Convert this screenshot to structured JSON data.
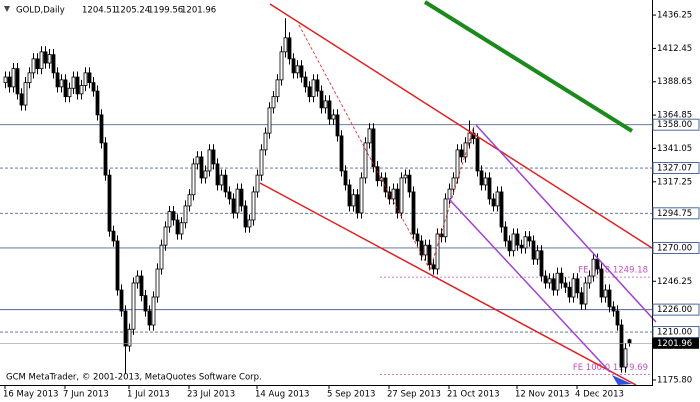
{
  "chart_data": {
    "type": "candlestick",
    "symbol": "GOLD,Daily",
    "copyright": "GCM MetaTrader, © 2001-2013, MetaQuotes Software Corp.",
    "ylim": [
      1172.2,
      1447
    ],
    "yticks": [
      1436.25,
      1412.45,
      1388.65,
      1364.85,
      1341.05,
      1317.25,
      1246.25,
      {
        "value": 1175.8,
        "label": "1175.80"
      }
    ],
    "up_color": "#ffffff",
    "down_color": "#000000",
    "level_color": "#4f6796",
    "levels": [
      {
        "value": 1358,
        "label": "1358.00",
        "dashed": false
      },
      {
        "value": 1327.07,
        "label": "1327.07",
        "dashed": true
      },
      {
        "value": 1294.75,
        "label": "1294.75",
        "dashed": true
      },
      {
        "value": 1270,
        "label": "1270.00",
        "dashed": false
      },
      {
        "value": 1226,
        "label": "1226.00",
        "dashed": false
      },
      {
        "value": 1210,
        "label": "1210.00",
        "dashed": true
      }
    ],
    "current_price": 1201.96,
    "fibo_color": "#c050c0",
    "fibo": [
      {
        "value": 1249.18,
        "label": "FE 61.8 1249.18"
      },
      {
        "value": 1179.69,
        "label": "FE 100.0 1179.69"
      }
    ],
    "categories": [
      "16 May 2013",
      null,
      null,
      null,
      null,
      null,
      null,
      null,
      null,
      null,
      null,
      null,
      null,
      null,
      null,
      "7 Jun 2013",
      null,
      null,
      null,
      null,
      null,
      null,
      null,
      null,
      null,
      null,
      null,
      null,
      null,
      null,
      null,
      "1 Jul 2013",
      null,
      null,
      null,
      null,
      null,
      null,
      null,
      null,
      null,
      null,
      null,
      null,
      null,
      null,
      "23 Jul 2013",
      null,
      null,
      null,
      null,
      null,
      null,
      null,
      null,
      null,
      null,
      null,
      null,
      null,
      null,
      null,
      null,
      "14 Aug 2013",
      null,
      null,
      null,
      null,
      null,
      null,
      null,
      null,
      null,
      null,
      null,
      null,
      null,
      null,
      null,
      null,
      null,
      "5 Sep 2013",
      null,
      null,
      null,
      null,
      null,
      null,
      null,
      null,
      null,
      null,
      null,
      null,
      null,
      null,
      "27 Sep 2013",
      null,
      null,
      null,
      null,
      null,
      null,
      null,
      null,
      null,
      null,
      null,
      null,
      null,
      null,
      "21 Oct 2013",
      null,
      null,
      null,
      null,
      null,
      null,
      null,
      null,
      null,
      null,
      null,
      null,
      null,
      null,
      null,
      null,
      "12 Nov 2013",
      null,
      null,
      null,
      null,
      null,
      null,
      null,
      null,
      null,
      null,
      null,
      null,
      null,
      null,
      "4 Dec 2013",
      null,
      null,
      null,
      null,
      null,
      null,
      null,
      null,
      null,
      null,
      null,
      null,
      null
    ],
    "open": [
      1388,
      1392,
      1385,
      1398,
      1380,
      1372,
      1388,
      1395,
      1405,
      1398,
      1410,
      1402,
      1408,
      1395,
      1385,
      1390,
      1378,
      1384,
      1392,
      1380,
      1386,
      1395,
      1388,
      1382,
      1365,
      1345,
      1322,
      1282,
      1275,
      1240,
      1225,
      1200,
      1212,
      1245,
      1250,
      1236,
      1225,
      1215,
      1235,
      1255,
      1272,
      1285,
      1296,
      1290,
      1280,
      1288,
      1300,
      1308,
      1330,
      1335,
      1320,
      1325,
      1340,
      1330,
      1315,
      1322,
      1310,
      1305,
      1295,
      1312,
      1300,
      1285,
      1290,
      1310,
      1322,
      1340,
      1352,
      1370,
      1378,
      1390,
      1410,
      1420,
      1405,
      1395,
      1400,
      1392,
      1385,
      1378,
      1390,
      1382,
      1370,
      1375,
      1362,
      1365,
      1350,
      1325,
      1315,
      1300,
      1308,
      1295,
      1320,
      1345,
      1355,
      1328,
      1318,
      1320,
      1310,
      1305,
      1312,
      1295,
      1320,
      1322,
      1310,
      1280,
      1275,
      1265,
      1272,
      1258,
      1255,
      1280,
      1278,
      1305,
      1312,
      1320,
      1340,
      1335,
      1345,
      1352,
      1348,
      1325,
      1315,
      1320,
      1305,
      1300,
      1310,
      1285,
      1275,
      1268,
      1280,
      1272,
      1270,
      1278,
      1275,
      1262,
      1268,
      1250,
      1245,
      1248,
      1240,
      1252,
      1245,
      1242,
      1235,
      1248,
      1238,
      1230,
      1245,
      1250,
      1262,
      1255,
      1235,
      1240,
      1228,
      1225,
      1215,
      1185,
      1204.51
    ],
    "high": [
      1396,
      1396,
      1402,
      1402,
      1384,
      1392,
      1399,
      1409,
      1409,
      1414,
      1414,
      1412,
      1412,
      1399,
      1394,
      1394,
      1388,
      1396,
      1396,
      1390,
      1399,
      1399,
      1392,
      1386,
      1369,
      1349,
      1326,
      1286,
      1279,
      1244,
      1229,
      1216,
      1249,
      1254,
      1254,
      1240,
      1229,
      1239,
      1259,
      1276,
      1289,
      1300,
      1300,
      1294,
      1292,
      1304,
      1312,
      1334,
      1339,
      1339,
      1329,
      1344,
      1344,
      1334,
      1326,
      1326,
      1314,
      1309,
      1316,
      1316,
      1304,
      1294,
      1314,
      1326,
      1344,
      1356,
      1374,
      1382,
      1394,
      1414,
      1434,
      1424,
      1409,
      1404,
      1404,
      1396,
      1389,
      1394,
      1394,
      1386,
      1379,
      1379,
      1369,
      1369,
      1354,
      1329,
      1319,
      1312,
      1312,
      1324,
      1349,
      1359,
      1359,
      1332,
      1324,
      1324,
      1314,
      1316,
      1316,
      1324,
      1326,
      1326,
      1314,
      1284,
      1279,
      1276,
      1276,
      1262,
      1284,
      1284,
      1309,
      1316,
      1324,
      1344,
      1344,
      1349,
      1361,
      1356,
      1352,
      1329,
      1324,
      1324,
      1309,
      1314,
      1314,
      1289,
      1279,
      1284,
      1284,
      1276,
      1282,
      1282,
      1279,
      1272,
      1272,
      1254,
      1252,
      1252,
      1256,
      1256,
      1249,
      1246,
      1252,
      1252,
      1242,
      1249,
      1254,
      1266,
      1266,
      1259,
      1244,
      1244,
      1232,
      1229,
      1219,
      1202,
      1205.24
    ],
    "low": [
      1384,
      1381,
      1381,
      1376,
      1368,
      1368,
      1384,
      1391,
      1394,
      1394,
      1398,
      1398,
      1391,
      1381,
      1381,
      1374,
      1374,
      1380,
      1376,
      1376,
      1382,
      1384,
      1378,
      1361,
      1341,
      1318,
      1278,
      1271,
      1236,
      1221,
      1180,
      1196,
      1208,
      1241,
      1232,
      1221,
      1211,
      1211,
      1231,
      1251,
      1268,
      1281,
      1286,
      1276,
      1276,
      1284,
      1296,
      1304,
      1326,
      1316,
      1316,
      1321,
      1326,
      1311,
      1311,
      1306,
      1301,
      1291,
      1291,
      1296,
      1281,
      1281,
      1286,
      1306,
      1318,
      1336,
      1348,
      1366,
      1374,
      1386,
      1406,
      1401,
      1391,
      1391,
      1388,
      1381,
      1374,
      1374,
      1378,
      1366,
      1366,
      1358,
      1358,
      1346,
      1321,
      1311,
      1296,
      1296,
      1291,
      1291,
      1316,
      1341,
      1324,
      1314,
      1314,
      1306,
      1301,
      1301,
      1291,
      1291,
      1316,
      1306,
      1276,
      1271,
      1261,
      1261,
      1254,
      1251,
      1251,
      1274,
      1274,
      1301,
      1308,
      1316,
      1331,
      1331,
      1341,
      1344,
      1321,
      1311,
      1311,
      1301,
      1296,
      1296,
      1281,
      1271,
      1264,
      1264,
      1268,
      1266,
      1266,
      1271,
      1258,
      1258,
      1246,
      1241,
      1241,
      1236,
      1236,
      1241,
      1238,
      1231,
      1231,
      1234,
      1226,
      1226,
      1241,
      1246,
      1251,
      1231,
      1231,
      1224,
      1221,
      1211,
      1181,
      1181,
      1199.56
    ],
    "close": [
      1392,
      1385,
      1398,
      1380,
      1372,
      1388,
      1395,
      1405,
      1398,
      1410,
      1402,
      1408,
      1395,
      1385,
      1390,
      1378,
      1384,
      1392,
      1380,
      1386,
      1395,
      1388,
      1382,
      1365,
      1345,
      1322,
      1282,
      1275,
      1240,
      1225,
      1200,
      1212,
      1245,
      1250,
      1236,
      1225,
      1215,
      1235,
      1255,
      1272,
      1285,
      1296,
      1290,
      1280,
      1288,
      1300,
      1308,
      1330,
      1335,
      1320,
      1325,
      1340,
      1330,
      1315,
      1322,
      1310,
      1305,
      1295,
      1312,
      1300,
      1285,
      1290,
      1310,
      1322,
      1340,
      1352,
      1370,
      1378,
      1390,
      1410,
      1420,
      1405,
      1395,
      1400,
      1392,
      1385,
      1378,
      1390,
      1382,
      1370,
      1375,
      1362,
      1365,
      1350,
      1325,
      1315,
      1300,
      1308,
      1295,
      1320,
      1345,
      1355,
      1328,
      1318,
      1320,
      1310,
      1305,
      1312,
      1295,
      1320,
      1322,
      1310,
      1280,
      1275,
      1265,
      1272,
      1258,
      1255,
      1280,
      1278,
      1305,
      1312,
      1320,
      1340,
      1335,
      1345,
      1352,
      1348,
      1325,
      1315,
      1320,
      1305,
      1300,
      1310,
      1285,
      1275,
      1268,
      1280,
      1272,
      1270,
      1278,
      1275,
      1262,
      1268,
      1250,
      1245,
      1248,
      1240,
      1252,
      1245,
      1242,
      1235,
      1248,
      1238,
      1230,
      1245,
      1250,
      1262,
      1255,
      1235,
      1240,
      1228,
      1225,
      1215,
      1185,
      1198,
      1201.96
    ]
  }
}
